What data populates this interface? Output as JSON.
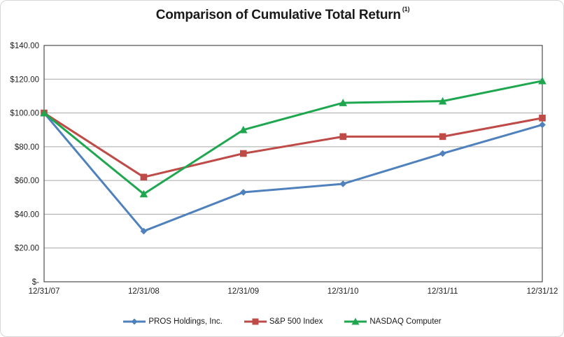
{
  "chart_data": {
    "type": "line",
    "title": "Comparison of Cumulative Total Return",
    "title_superscript": "(1)",
    "x_categories": [
      "12/31/07",
      "12/31/08",
      "12/31/09",
      "12/31/10",
      "12/31/11",
      "12/31/12"
    ],
    "series": [
      {
        "name": "PROS Holdings, Inc.",
        "color": "#4F81BD",
        "marker": "diamond",
        "values": [
          100,
          30,
          53,
          58,
          76,
          93
        ]
      },
      {
        "name": "S&P 500 Index",
        "color": "#BE4B48",
        "marker": "square",
        "values": [
          100,
          62,
          76,
          86,
          86,
          97
        ]
      },
      {
        "name": "NASDAQ Computer",
        "color": "#1FA750",
        "marker": "triangle",
        "values": [
          100,
          52,
          90,
          106,
          107,
          119
        ]
      }
    ],
    "ylim": [
      0,
      140
    ],
    "ytick_step": 20,
    "ytick_labels_bottom_up": [
      "$-",
      "$20.00",
      "$40.00",
      "$60.00",
      "$80.00",
      "$100.00",
      "$120.00",
      "$140.00"
    ],
    "grid": true,
    "legend_position": "bottom",
    "colors": {
      "plot_border": "#4d4d4d",
      "gridline": "#a6a6a6",
      "axis_text": "#1f1f1f"
    }
  }
}
